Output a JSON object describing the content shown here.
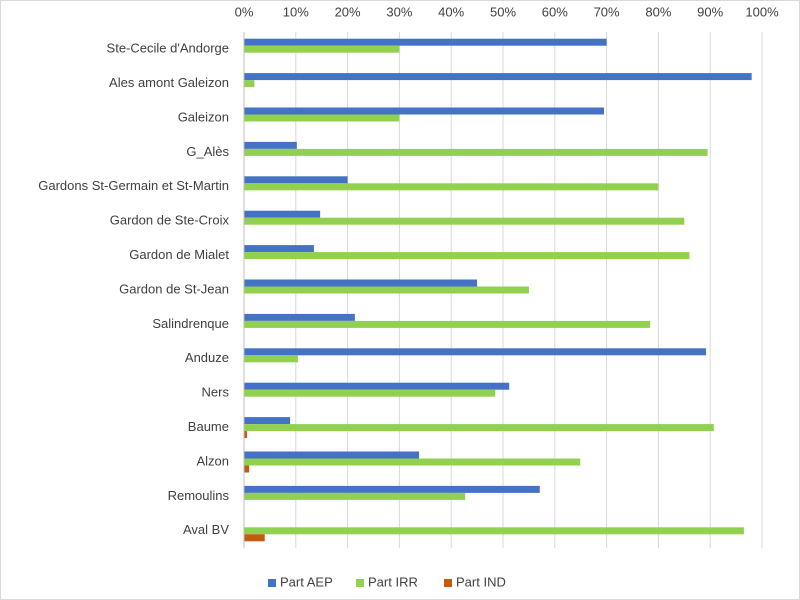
{
  "chart_data": {
    "type": "bar",
    "orientation": "horizontal",
    "categories": [
      "Ste-Cecile d'Andorge",
      "Ales amont Galeizon",
      "Galeizon",
      "G_Alès",
      "Gardons St-Germain et St-Martin",
      "Gardon de Ste-Croix",
      "Gardon de Mialet",
      "Gardon de St-Jean",
      "Salindrenque",
      "Anduze",
      "Ners",
      "Baume",
      "Alzon",
      "Remoulins",
      "Aval BV"
    ],
    "series": [
      {
        "name": "Part AEP",
        "color": "#4472c4",
        "values": [
          70,
          98,
          69.5,
          10.2,
          20,
          14.7,
          13.5,
          45,
          21.4,
          89.2,
          51.2,
          8.9,
          33.8,
          57.1,
          0
        ]
      },
      {
        "name": "Part IRR",
        "color": "#92d050",
        "values": [
          30,
          2,
          30,
          89.5,
          80,
          85,
          86,
          55,
          78.4,
          10.4,
          48.5,
          90.7,
          64.9,
          42.7,
          96.5
        ]
      },
      {
        "name": "Part IND",
        "color": "#c55a11",
        "values": [
          0,
          0,
          0,
          0,
          0,
          0,
          0,
          0,
          0,
          0,
          0,
          0.6,
          1,
          0,
          4
        ]
      }
    ],
    "xlim": [
      0,
      100
    ],
    "xticks": [
      {
        "value": 0,
        "label": "0%"
      },
      {
        "value": 10,
        "label": "10%"
      },
      {
        "value": 20,
        "label": "20%"
      },
      {
        "value": 30,
        "label": "30%"
      },
      {
        "value": 40,
        "label": "40%"
      },
      {
        "value": 50,
        "label": "50%"
      },
      {
        "value": 60,
        "label": "60%"
      },
      {
        "value": 70,
        "label": "70%"
      },
      {
        "value": 80,
        "label": "80%"
      },
      {
        "value": 90,
        "label": "90%"
      },
      {
        "value": 100,
        "label": "100%"
      }
    ],
    "grid": true,
    "legend": "bottom"
  }
}
